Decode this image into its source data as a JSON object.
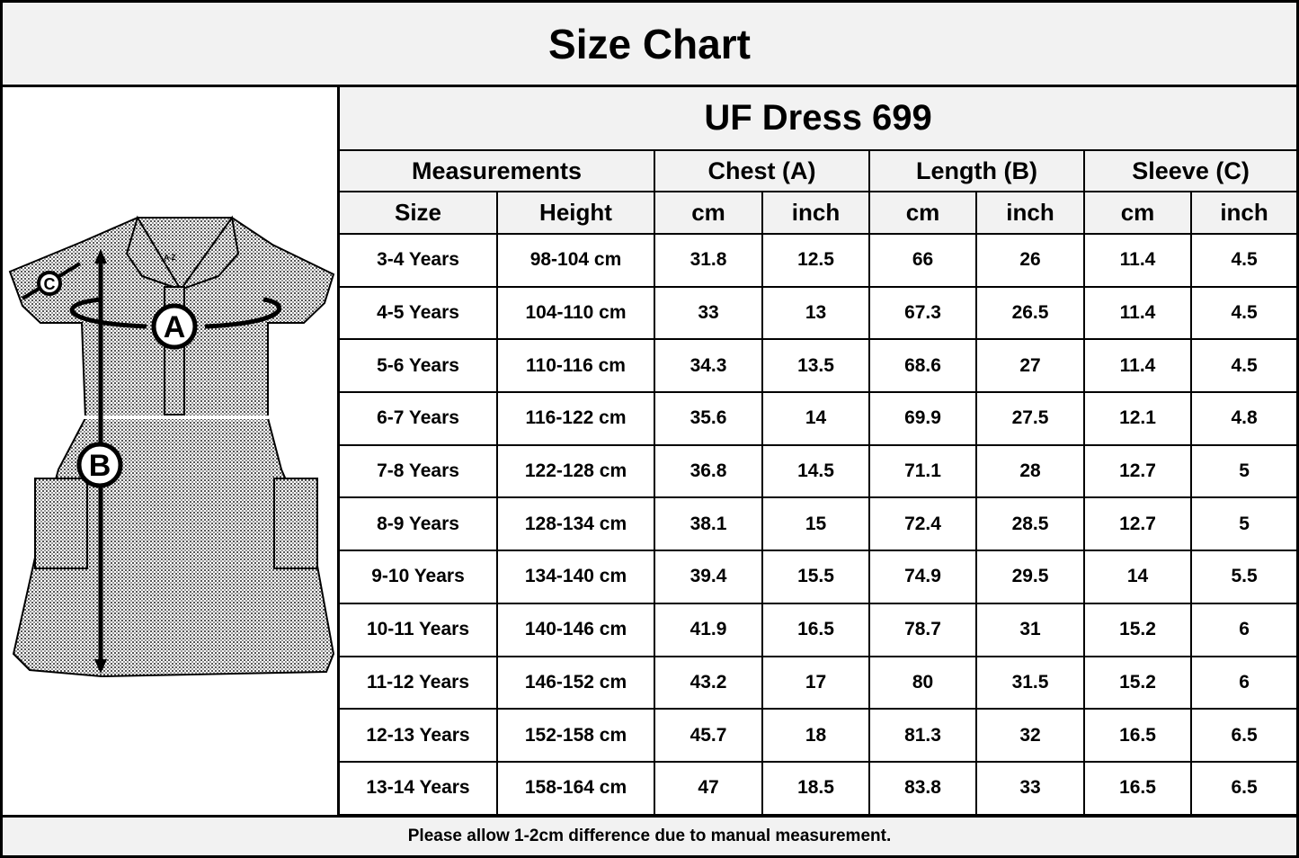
{
  "title": "Size Chart",
  "product": "UF Dress 699",
  "diagram": {
    "labels": [
      "A",
      "B",
      "C"
    ],
    "brand_tag": "A-Z"
  },
  "header_groups": [
    "Measurements",
    "Chest (A)",
    "Length (B)",
    "Sleeve (C)"
  ],
  "sub_headers": [
    "Size",
    "Height",
    "cm",
    "inch",
    "cm",
    "inch",
    "cm",
    "inch"
  ],
  "rows": [
    [
      "3-4 Years",
      "98-104 cm",
      "31.8",
      "12.5",
      "66",
      "26",
      "11.4",
      "4.5"
    ],
    [
      "4-5 Years",
      "104-110 cm",
      "33",
      "13",
      "67.3",
      "26.5",
      "11.4",
      "4.5"
    ],
    [
      "5-6 Years",
      "110-116 cm",
      "34.3",
      "13.5",
      "68.6",
      "27",
      "11.4",
      "4.5"
    ],
    [
      "6-7 Years",
      "116-122 cm",
      "35.6",
      "14",
      "69.9",
      "27.5",
      "12.1",
      "4.8"
    ],
    [
      "7-8 Years",
      "122-128 cm",
      "36.8",
      "14.5",
      "71.1",
      "28",
      "12.7",
      "5"
    ],
    [
      "8-9 Years",
      "128-134 cm",
      "38.1",
      "15",
      "72.4",
      "28.5",
      "12.7",
      "5"
    ],
    [
      "9-10 Years",
      "134-140 cm",
      "39.4",
      "15.5",
      "74.9",
      "29.5",
      "14",
      "5.5"
    ],
    [
      "10-11 Years",
      "140-146 cm",
      "41.9",
      "16.5",
      "78.7",
      "31",
      "15.2",
      "6"
    ],
    [
      "11-12 Years",
      "146-152 cm",
      "43.2",
      "17",
      "80",
      "31.5",
      "15.2",
      "6"
    ],
    [
      "12-13 Years",
      "152-158 cm",
      "45.7",
      "18",
      "81.3",
      "32",
      "16.5",
      "6.5"
    ],
    [
      "13-14 Years",
      "158-164 cm",
      "47",
      "18.5",
      "83.8",
      "33",
      "16.5",
      "6.5"
    ]
  ],
  "footer": "Please allow 1-2cm difference due to manual measurement."
}
